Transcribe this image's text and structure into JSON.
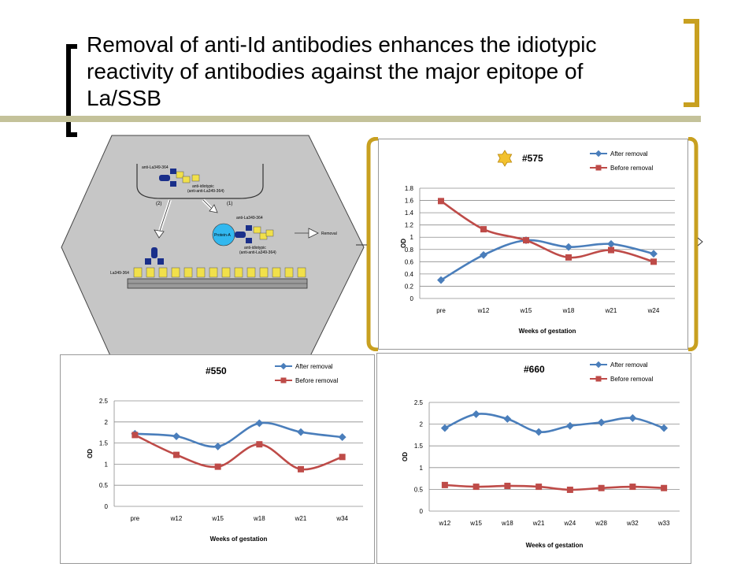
{
  "slide": {
    "title": "Removal of anti-Id antibodies enhances the idiotypic reactivity of antibodies against the major epitope of La/SSB"
  },
  "diagram": {
    "top_label": "anti-La349-364",
    "anti_idiotypic_top": "anti-idiotypic",
    "anti_idiotypic_top_sub": "(anti-anti-La349-364)",
    "step2": "(2)",
    "step1": "(1)",
    "protein_a": "Protein-A",
    "right_top_label": "anti-La349-364",
    "removal": "Removal",
    "anti_idiotypic_right": "anti-idiotypic",
    "anti_idiotypic_right_sub": "(anti-anti-La349-364)",
    "plate_label": "La349-364"
  },
  "legend_labels": {
    "after": "After removal",
    "before": "Before removal"
  },
  "colors": {
    "after": "#4a7ebb",
    "before": "#be4b48",
    "gold": "#c8a020",
    "star": "#f2c12e"
  },
  "chart_data": [
    {
      "type": "line",
      "title": "#575",
      "xlabel": "Weeks of gestation",
      "ylabel": "OD",
      "categories": [
        "pre",
        "w12",
        "w15",
        "w18",
        "w21",
        "w24"
      ],
      "ylim": [
        0,
        1.8
      ],
      "yticks": [
        0,
        0.2,
        0.4,
        0.6,
        0.8,
        1,
        1.2,
        1.4,
        1.6,
        1.8
      ],
      "grid": true,
      "legend": "top-right",
      "series": [
        {
          "name": "After removal",
          "values": [
            0.3,
            0.71,
            0.95,
            0.84,
            0.89,
            0.73
          ]
        },
        {
          "name": "Before removal",
          "values": [
            1.59,
            1.13,
            0.95,
            0.67,
            0.79,
            0.6
          ]
        }
      ]
    },
    {
      "type": "line",
      "title": "#550",
      "xlabel": "Weeks of gestation",
      "ylabel": "OD",
      "categories": [
        "pre",
        "w12",
        "w15",
        "w18",
        "w21",
        "w34"
      ],
      "ylim": [
        0,
        2.5
      ],
      "yticks": [
        0,
        0.5,
        1,
        1.5,
        2,
        2.5
      ],
      "grid": true,
      "legend": "top-right",
      "series": [
        {
          "name": "After removal",
          "values": [
            1.72,
            1.66,
            1.42,
            1.97,
            1.76,
            1.64
          ]
        },
        {
          "name": "Before removal",
          "values": [
            1.69,
            1.22,
            0.94,
            1.47,
            0.88,
            1.17
          ]
        }
      ]
    },
    {
      "type": "line",
      "title": "#660",
      "xlabel": "Weeks of gestation",
      "ylabel": "OD",
      "categories": [
        "w12",
        "w15",
        "w18",
        "w21",
        "w24",
        "w28",
        "w32",
        "w33"
      ],
      "ylim": [
        0,
        2.5
      ],
      "yticks": [
        0,
        0.5,
        1,
        1.5,
        2,
        2.5
      ],
      "grid": true,
      "legend": "top-right",
      "series": [
        {
          "name": "After removal",
          "values": [
            1.91,
            2.23,
            2.12,
            1.82,
            1.96,
            2.04,
            2.14,
            1.91
          ]
        },
        {
          "name": "Before removal",
          "values": [
            0.6,
            0.56,
            0.58,
            0.56,
            0.49,
            0.53,
            0.56,
            0.53
          ]
        }
      ]
    }
  ]
}
